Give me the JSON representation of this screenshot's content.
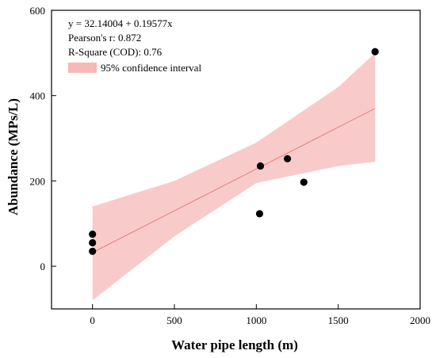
{
  "chart_data": {
    "type": "scatter",
    "title": "",
    "xlabel": "Water pipe length (m)",
    "ylabel": "Abundance (MPs/L)",
    "xlim": [
      -250,
      2000
    ],
    "ylim": [
      -100,
      600
    ],
    "x_ticks": [
      0,
      500,
      1000,
      1500,
      2000
    ],
    "y_ticks": [
      0,
      200,
      400,
      600
    ],
    "x_tick_labels": [
      "0",
      "500",
      "1000",
      "1500",
      "2000"
    ],
    "y_tick_labels": [
      "0",
      "200",
      "400",
      "600"
    ],
    "grid": false,
    "legend_position": "top-left",
    "colors": {
      "points": "#000000",
      "fit_line": "#e06a6a",
      "band": "#f7b8b8"
    },
    "series": [
      {
        "kind": "points",
        "x": [
          0,
          0,
          0,
          1020,
          1025,
          1190,
          1290,
          1725
        ],
        "y": [
          75,
          55,
          35,
          123,
          235,
          252,
          197,
          503
        ]
      }
    ],
    "fit": {
      "intercept": 32.14004,
      "slope": 0.19577,
      "x_range": [
        0,
        1725
      ]
    },
    "confidence_band": {
      "x": [
        0,
        500,
        1000,
        1500,
        1725
      ],
      "lower": [
        -80,
        70,
        195,
        235,
        245
      ],
      "upper": [
        140,
        200,
        290,
        420,
        500
      ]
    },
    "annotations": [
      "y = 32.14004 + 0.19577x",
      "Pearson's r: 0.872",
      "R-Square (COD): 0.76"
    ],
    "legend": [
      "95% confidence interval"
    ]
  }
}
